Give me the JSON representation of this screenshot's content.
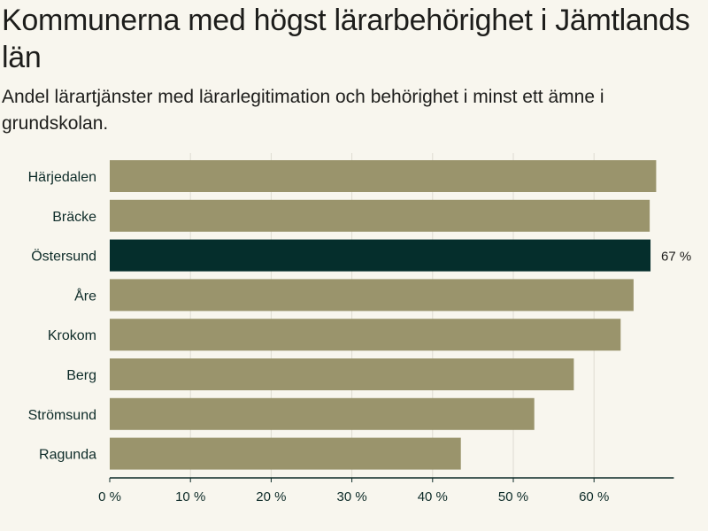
{
  "title": "Kommunerna med högst lärarbehörighet i Jämtlands län",
  "subtitle": "Andel lärartjänster med lärarlegitimation och behörighet i minst ett ämne i grundskolan.",
  "chart_data": {
    "type": "bar",
    "orientation": "horizontal",
    "categories": [
      "Härjedalen",
      "Bräcke",
      "Östersund",
      "Åre",
      "Krokom",
      "Berg",
      "Strömsund",
      "Ragunda"
    ],
    "values": [
      67.7,
      66.9,
      67,
      64.9,
      63.3,
      57.5,
      52.6,
      43.5
    ],
    "highlight_index": 2,
    "data_labels": [
      {
        "index": 2,
        "text": "67 %"
      }
    ],
    "xlim": [
      0,
      70
    ],
    "xticks": [
      0,
      10,
      20,
      30,
      40,
      50,
      60
    ],
    "xtick_labels": [
      "0 %",
      "10 %",
      "20 %",
      "30 %",
      "40 %",
      "50 %",
      "60 %"
    ],
    "grid": true,
    "colors": {
      "bar": "#9a946c",
      "highlight": "#052e2c",
      "grid": "#dedbd1",
      "axis": "#0d2b28",
      "background": "#f8f6ee"
    }
  }
}
